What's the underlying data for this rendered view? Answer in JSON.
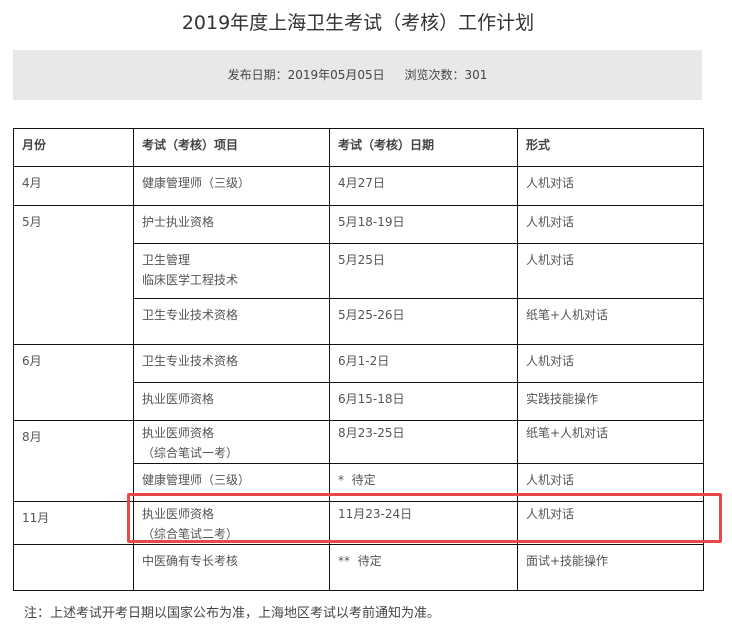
{
  "title": "2019年度上海卫生考试（考核）工作计划",
  "meta": {
    "publish_date": "发布日期：2019年05月05日",
    "views": "浏览次数：301"
  },
  "table": {
    "headers": [
      "月份",
      "考试（考核）项目",
      "考试（考核）日期",
      "形式"
    ],
    "rows": [
      {
        "month": "4月",
        "item": [
          "健康管理师（三级）"
        ],
        "date": "4月27日",
        "form": "人机对话"
      },
      {
        "month": "5月",
        "item": [
          "护士执业资格"
        ],
        "date": "5月18-19日",
        "form": "人机对话"
      },
      {
        "month": "",
        "item": [
          "卫生管理",
          "临床医学工程技术"
        ],
        "date": "5月25日",
        "form": "人机对话"
      },
      {
        "month": "",
        "item": [
          "卫生专业技术资格"
        ],
        "date": "5月25-26日",
        "form": "纸笔+人机对话"
      },
      {
        "month": "6月",
        "item": [
          "卫生专业技术资格"
        ],
        "date": "6月1-2日",
        "form": "人机对话"
      },
      {
        "month": "",
        "item": [
          "执业医师资格"
        ],
        "date": "6月15-18日",
        "form": "实践技能操作"
      },
      {
        "month": "8月",
        "item": [
          "执业医师资格",
          "（综合笔试一考）"
        ],
        "date": "8月23-25日",
        "form": "纸笔+人机对话"
      },
      {
        "month": "",
        "item": [
          "健康管理师（三级）"
        ],
        "date": "*  待定",
        "form": "人机对话"
      },
      {
        "month": "11月",
        "item": [
          "执业医师资格",
          "（综合笔试二考）"
        ],
        "date": "11月23-24日",
        "form": "人机对话"
      },
      {
        "month": "",
        "item": [
          "中医确有专长考核"
        ],
        "date": "**  待定",
        "form": "面试+技能操作"
      }
    ]
  },
  "highlight_color": "#e84848",
  "note": "注：上述考试开考日期以国家公布为准，上海地区考试以考前通知为准。"
}
